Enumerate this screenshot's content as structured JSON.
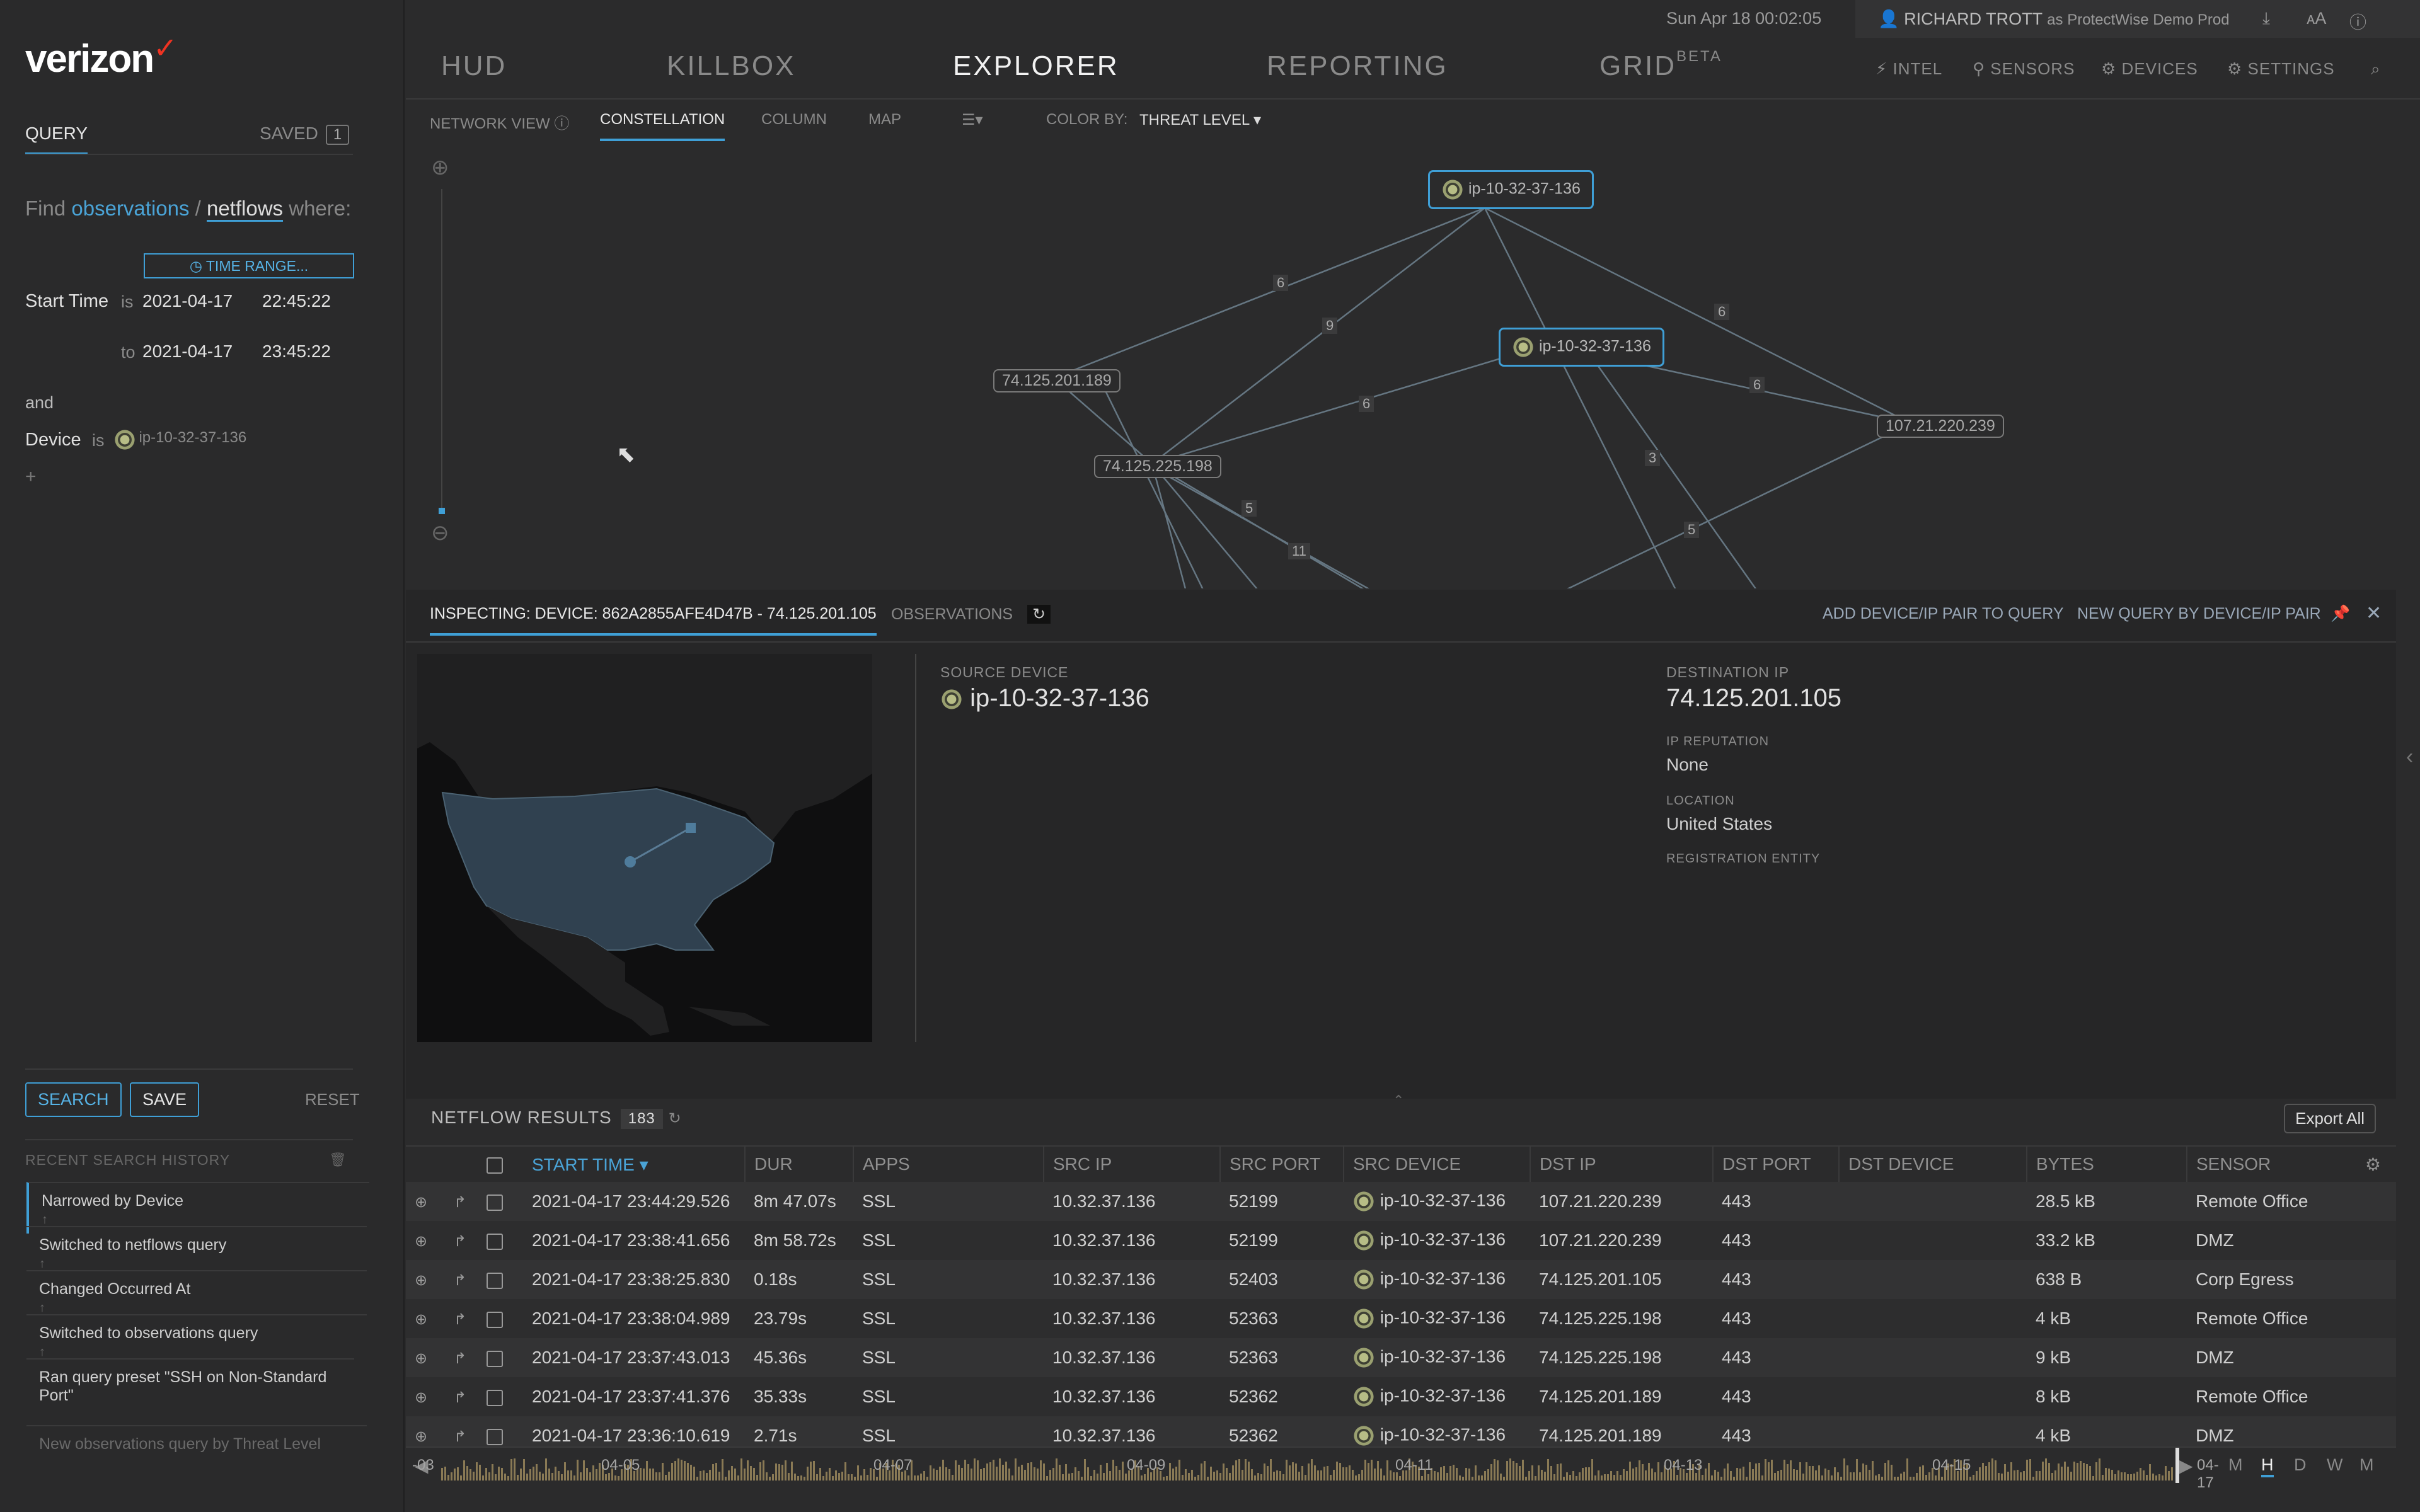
{
  "brand": "verizon",
  "top": {
    "datetime": "Sun Apr 18 00:02:05",
    "user": "RICHARD TROTT",
    "user_context": "as ProtectWise Demo Prod"
  },
  "nav": {
    "hud": "HUD",
    "killbox": "KILLBOX",
    "explorer": "EXPLORER",
    "reporting": "REPORTING",
    "grid": "GRID",
    "grid_badge": "BETA",
    "intel": "INTEL",
    "sensors": "SENSORS",
    "devices": "DEVICES",
    "settings": "SETTINGS"
  },
  "sidebar": {
    "tab_query": "QUERY",
    "tab_saved": "SAVED",
    "saved_count": "1",
    "find": "Find",
    "obs_link": "observations",
    "slash": "/",
    "netflows_link": "netflows",
    "where": "where:",
    "time_range_btn": "TIME RANGE...",
    "start_label": "Start Time",
    "is": "is",
    "to": "to",
    "start_date": "2021-04-17",
    "start_time": "22:45:22",
    "end_date": "2021-04-17",
    "end_time": "23:45:22",
    "and": "and",
    "device_label": "Device",
    "device_value": "ip-10-32-37-136",
    "add": "+",
    "search_btn": "SEARCH",
    "save_btn": "SAVE",
    "reset_btn": "RESET",
    "history_title": "RECENT SEARCH HISTORY",
    "history": [
      "Narrowed by Device",
      "Switched to netflows query",
      "Changed Occurred At",
      "Switched to observations query",
      "Ran query preset \"SSH on Non-Standard Port\""
    ],
    "history_faded": "New observations query by Threat Level"
  },
  "view": {
    "network_view": "NETWORK VIEW",
    "constellation": "CONSTELLATION",
    "column": "COLUMN",
    "map": "MAP",
    "color_by_label": "COLOR BY:",
    "color_by_value": "THREAT LEVEL"
  },
  "graph": {
    "nodes": {
      "dev1": "ip-10-32-37-136",
      "dev2": "ip-10-32-37-136",
      "ip1": "74.125.201.189",
      "ip2": "74.125.225.198",
      "ip3": "107.21.220.239"
    },
    "edge_labels": [
      "6",
      "9",
      "6",
      "6",
      "6",
      "3",
      "5",
      "11",
      "5"
    ]
  },
  "inspect": {
    "tab_inspecting": "INSPECTING: DEVICE: 862A2855AFE4D47B - 74.125.201.105",
    "tab_observations": "OBSERVATIONS",
    "add_pair": "ADD DEVICE/IP PAIR TO QUERY",
    "new_query": "NEW QUERY BY DEVICE/IP PAIR",
    "source_label": "SOURCE DEVICE",
    "source_value": "ip-10-32-37-136",
    "dest_label": "DESTINATION IP",
    "dest_value": "74.125.201.105",
    "rep_label": "IP REPUTATION",
    "rep_value": "None",
    "loc_label": "LOCATION",
    "loc_value": "United States",
    "reg_label": "REGISTRATION ENTITY"
  },
  "results": {
    "title": "NETFLOW RESULTS",
    "count": "183",
    "export": "Export All",
    "columns": [
      "START TIME",
      "DUR",
      "APPS",
      "SRC IP",
      "SRC PORT",
      "SRC DEVICE",
      "DST IP",
      "DST PORT",
      "DST DEVICE",
      "BYTES",
      "SENSOR"
    ],
    "rows": [
      [
        "2021-04-17 23:44:29.526",
        "8m 47.07s",
        "SSL",
        "10.32.37.136",
        "52199",
        "ip-10-32-37-136",
        "107.21.220.239",
        "443",
        "",
        "28.5 kB",
        "Remote Office"
      ],
      [
        "2021-04-17 23:38:41.656",
        "8m 58.72s",
        "SSL",
        "10.32.37.136",
        "52199",
        "ip-10-32-37-136",
        "107.21.220.239",
        "443",
        "",
        "33.2 kB",
        "DMZ"
      ],
      [
        "2021-04-17 23:38:25.830",
        "0.18s",
        "SSL",
        "10.32.37.136",
        "52403",
        "ip-10-32-37-136",
        "74.125.201.105",
        "443",
        "",
        "638 B",
        "Corp Egress"
      ],
      [
        "2021-04-17 23:38:04.989",
        "23.79s",
        "SSL",
        "10.32.37.136",
        "52363",
        "ip-10-32-37-136",
        "74.125.225.198",
        "443",
        "",
        "4 kB",
        "Remote Office"
      ],
      [
        "2021-04-17 23:37:43.013",
        "45.36s",
        "SSL",
        "10.32.37.136",
        "52363",
        "ip-10-32-37-136",
        "74.125.225.198",
        "443",
        "",
        "9 kB",
        "DMZ"
      ],
      [
        "2021-04-17 23:37:41.376",
        "35.33s",
        "SSL",
        "10.32.37.136",
        "52362",
        "ip-10-32-37-136",
        "74.125.201.189",
        "443",
        "",
        "8 kB",
        "Remote Office"
      ],
      [
        "2021-04-17 23:36:10.619",
        "2.71s",
        "SSL",
        "10.32.37.136",
        "52362",
        "ip-10-32-37-136",
        "74.125.201.189",
        "443",
        "",
        "4 kB",
        "DMZ"
      ]
    ]
  },
  "timeline": {
    "labels": [
      "-03",
      "04-05",
      "04-07",
      "04-09",
      "04-11",
      "04-13",
      "04-15",
      "04-17"
    ],
    "zoom": [
      "M",
      "H",
      "D",
      "W",
      "M"
    ],
    "zoom_active": "H"
  },
  "colors": {
    "accent": "#3f9fd6",
    "bg": "#2b2b2c",
    "histogram": "#8a7a55"
  }
}
